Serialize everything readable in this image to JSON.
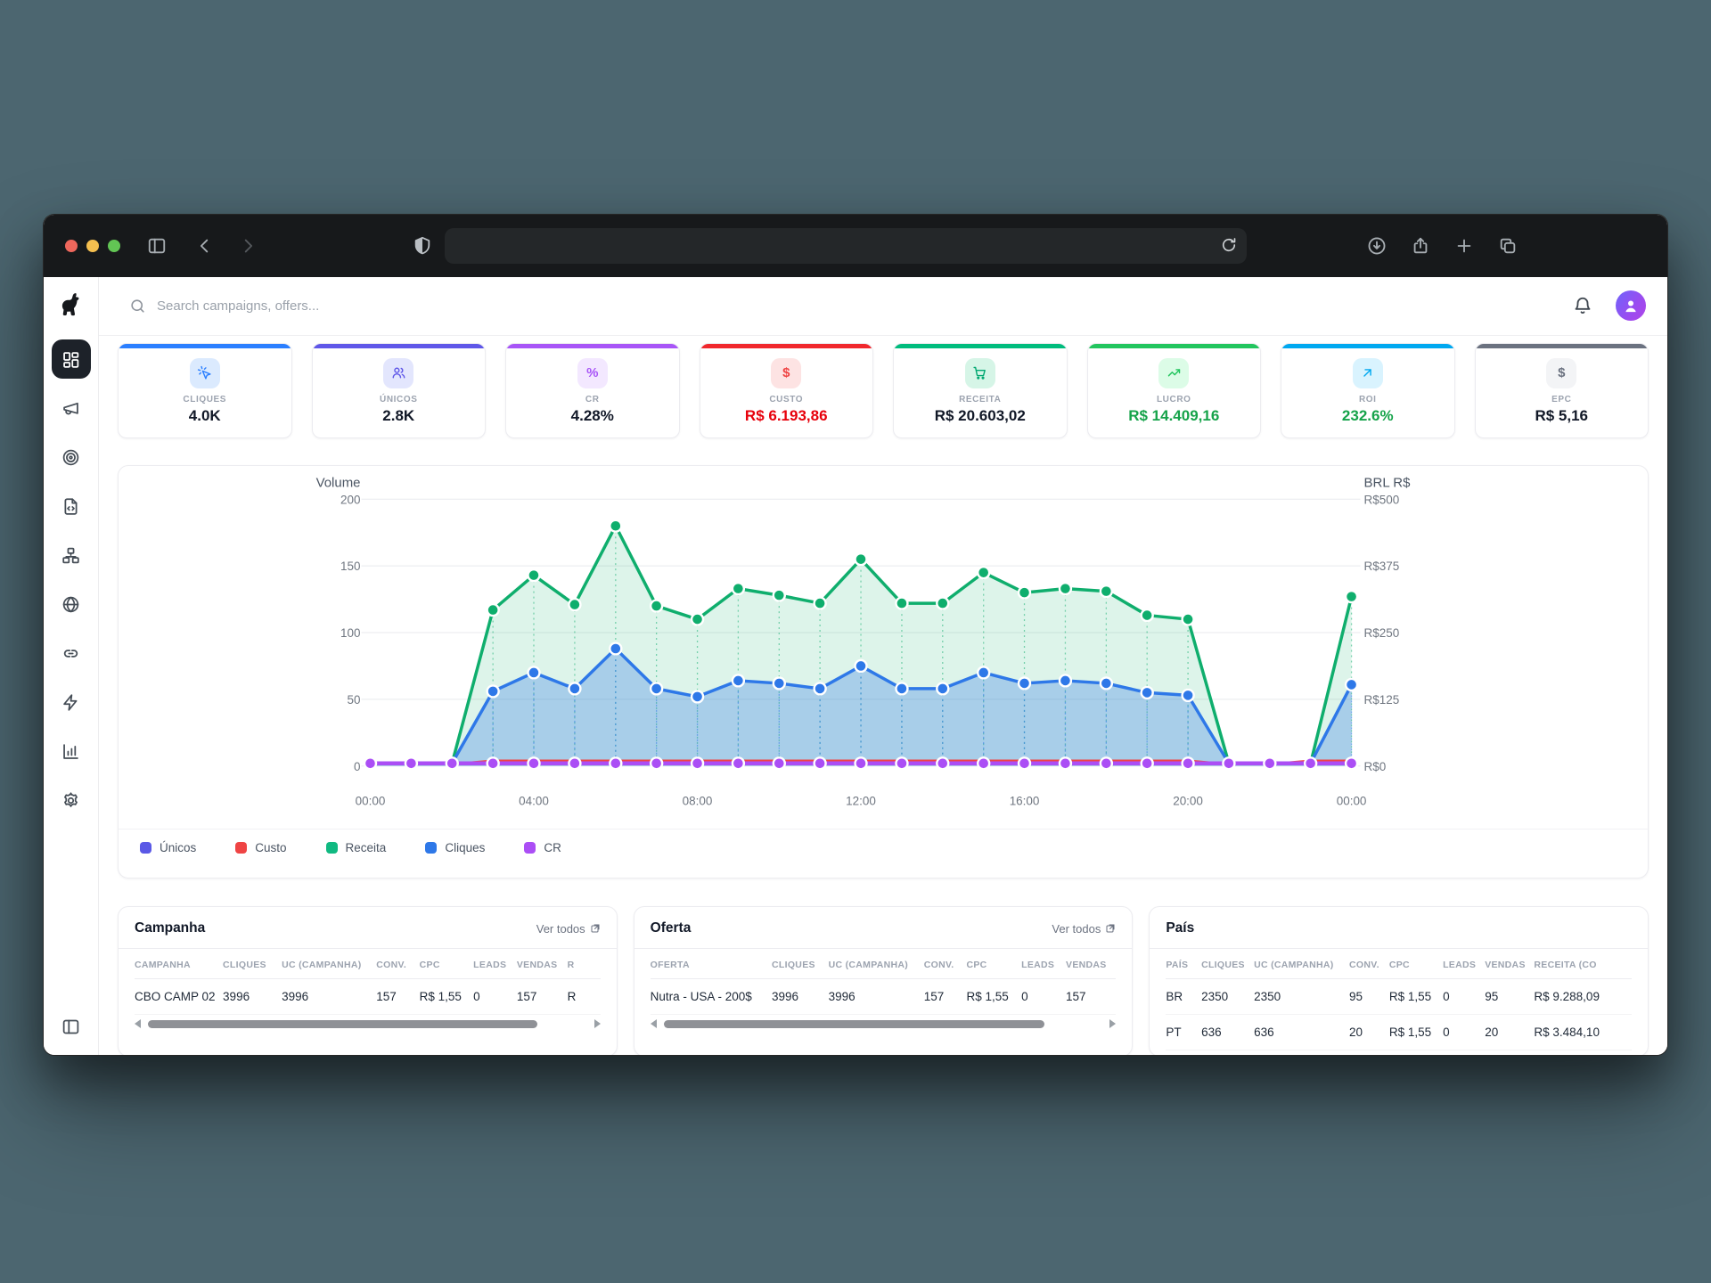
{
  "desktop_background": "#4c6670",
  "browser": {
    "theme": "dark",
    "traffic_lights": [
      "#ee675c",
      "#f5bf4f",
      "#62c554"
    ],
    "url_value": "",
    "toolbar_icons": [
      "sidebar-toggle",
      "chevron-left",
      "chevron-right",
      "shield",
      "reload",
      "download",
      "share",
      "plus",
      "tab-overview"
    ]
  },
  "topbar": {
    "search_placeholder": "Search campaigns, offers...",
    "icons": [
      "search",
      "bell",
      "avatar"
    ]
  },
  "sidebar": {
    "logo": "dog-logo",
    "items": [
      {
        "id": "dashboard",
        "icon": "layout-grid",
        "active": true
      },
      {
        "id": "campaigns",
        "icon": "megaphone",
        "active": false
      },
      {
        "id": "targets",
        "icon": "target",
        "active": false
      },
      {
        "id": "landers",
        "icon": "file-code",
        "active": false
      },
      {
        "id": "flows",
        "icon": "sitemap",
        "active": false
      },
      {
        "id": "domains",
        "icon": "globe",
        "active": false
      },
      {
        "id": "links",
        "icon": "link",
        "active": false
      },
      {
        "id": "automation",
        "icon": "zap",
        "active": false
      },
      {
        "id": "reports",
        "icon": "bar-chart",
        "active": false
      },
      {
        "id": "settings",
        "icon": "gear",
        "active": false
      }
    ],
    "bottom_icon": "panel-left"
  },
  "stats": [
    {
      "label": "CLIQUES",
      "value": "4.0K",
      "accent": "#2b7fff",
      "icon": "cursor-click",
      "icon_bg": "#dbeafe",
      "icon_color": "#2b7fff",
      "value_color": "#111827"
    },
    {
      "label": "ÚNICOS",
      "value": "2.8K",
      "accent": "#5f57e8",
      "icon": "users",
      "icon_bg": "#e3e6fd",
      "icon_color": "#5f57e8",
      "value_color": "#111827"
    },
    {
      "label": "CR",
      "value": "4.28%",
      "accent": "#a855f7",
      "icon": "percent",
      "icon_bg": "#f3e8ff",
      "icon_color": "#a855f7",
      "value_color": "#111827"
    },
    {
      "label": "CUSTO",
      "value": "R$ 6.193,86",
      "accent": "#f0282d",
      "icon": "dollar",
      "icon_bg": "#fde3e3",
      "icon_color": "#ef4444",
      "value_color": "#e7000b"
    },
    {
      "label": "RECEITA",
      "value": "R$ 20.603,02",
      "accent": "#00bc7d",
      "icon": "cart",
      "icon_bg": "#d6f5e7",
      "icon_color": "#00a871",
      "value_color": "#111827"
    },
    {
      "label": "LUCRO",
      "value": "R$ 14.409,16",
      "accent": "#22c55e",
      "icon": "trending-up",
      "icon_bg": "#dcfce7",
      "icon_color": "#22c55e",
      "value_color": "#16a34a"
    },
    {
      "label": "ROI",
      "value": "232.6%",
      "accent": "#00a8f0",
      "icon": "arrow-up-right",
      "icon_bg": "#d9f3fe",
      "icon_color": "#00a8f0",
      "value_color": "#16a34a"
    },
    {
      "label": "EPC",
      "value": "R$ 5,16",
      "accent": "#6b7280",
      "icon": "dollar",
      "icon_bg": "#f3f4f6",
      "icon_color": "#6b7280",
      "value_color": "#111827"
    }
  ],
  "chart_data": {
    "type": "area",
    "title_left": "Volume",
    "title_right": "BRL R$",
    "points": 25,
    "x_ticks": [
      0,
      4,
      8,
      12,
      16,
      20,
      24
    ],
    "x_tick_labels": [
      "00:00",
      "04:00",
      "08:00",
      "12:00",
      "16:00",
      "20:00",
      "00:00"
    ],
    "y_left_max": 200,
    "y_left_ticks": [
      0,
      50,
      100,
      150,
      200
    ],
    "y_left_tick_labels": [
      "0",
      "50",
      "100",
      "150",
      "200"
    ],
    "y_right_tick_labels": [
      "R$0",
      "R$125",
      "R$250",
      "R$375",
      "R$500"
    ],
    "grid": true,
    "legend_position": "bottom",
    "series": [
      {
        "name": "Receita",
        "color": "#0fae6d",
        "fill": "rgba(16,174,109,0.14)",
        "width": 3.5,
        "dots": true,
        "dot_min": 10,
        "droplines": true,
        "values": [
          2,
          2,
          2,
          117,
          143,
          121,
          180,
          120,
          110,
          133,
          128,
          122,
          155,
          122,
          122,
          145,
          130,
          133,
          131,
          113,
          110,
          2,
          2,
          2,
          127
        ]
      },
      {
        "name": "Cliques",
        "color": "#2e78e8",
        "fill": "rgba(46,120,232,0.30)",
        "width": 3.5,
        "dots": true,
        "dot_min": 10,
        "droplines": true,
        "values": [
          2,
          2,
          2,
          56,
          70,
          58,
          88,
          58,
          52,
          64,
          62,
          58,
          75,
          58,
          58,
          70,
          62,
          64,
          62,
          55,
          53,
          2,
          2,
          2,
          61
        ]
      },
      {
        "name": "Custo",
        "color": "#ef4444",
        "fill": null,
        "width": 2.5,
        "dots": false,
        "dot_min": null,
        "droplines": false,
        "values": [
          1.5,
          1.5,
          1.5,
          4,
          4,
          4,
          4,
          4,
          4,
          4,
          4,
          4,
          4,
          4,
          4,
          4,
          4,
          4,
          4,
          4,
          4,
          1.5,
          1.5,
          4,
          4
        ]
      },
      {
        "name": "Únicos",
        "color": "#5a58e6",
        "fill": null,
        "width": 2.5,
        "dots": false,
        "dot_min": null,
        "droplines": false,
        "values": [
          2,
          2,
          2,
          2,
          2,
          2,
          2,
          2,
          2,
          2,
          2,
          2,
          2,
          2,
          2,
          2,
          2,
          2,
          2,
          2,
          2,
          2,
          2,
          2,
          2
        ]
      },
      {
        "name": "CR",
        "color": "#ab4ef5",
        "fill": null,
        "width": 4.5,
        "dots": true,
        "dot_min": null,
        "droplines": false,
        "values": [
          2,
          2,
          2,
          2,
          2,
          2,
          2,
          2,
          2,
          2,
          2,
          2,
          2,
          2,
          2,
          2,
          2,
          2,
          2,
          2,
          2,
          2,
          2,
          2,
          2
        ]
      }
    ],
    "legend": [
      {
        "label": "Únicos",
        "color": "#5a58e6"
      },
      {
        "label": "Custo",
        "color": "#ef4444"
      },
      {
        "label": "Receita",
        "color": "#10b981"
      },
      {
        "label": "Cliques",
        "color": "#2e78e8"
      },
      {
        "label": "CR",
        "color": "#ab4ef5"
      }
    ]
  },
  "tables": [
    {
      "id": "campanha",
      "title": "Campanha",
      "link_label": "Ver todos",
      "has_link": true,
      "has_scrollbar": true,
      "thumb_width": "88%",
      "headers": [
        "CAMPANHA",
        "CLIQUES",
        "UC (CAMPANHA)",
        "CONV.",
        "CPC",
        "LEADS",
        "VENDAS",
        "R"
      ],
      "rows": [
        [
          "CBO CAMP 02",
          "3996",
          "3996",
          "157",
          "R$ 1,55",
          "0",
          "157",
          "R"
        ]
      ]
    },
    {
      "id": "oferta",
      "title": "Oferta",
      "link_label": "Ver todos",
      "has_link": true,
      "has_scrollbar": true,
      "thumb_width": "86%",
      "headers": [
        "OFERTA",
        "CLIQUES",
        "UC (CAMPANHA)",
        "CONV.",
        "CPC",
        "LEADS",
        "VENDAS"
      ],
      "rows": [
        [
          "Nutra - USA - 200$",
          "3996",
          "3996",
          "157",
          "R$ 1,55",
          "0",
          "157"
        ]
      ]
    },
    {
      "id": "pais",
      "title": "País",
      "link_label": "",
      "has_link": false,
      "has_scrollbar": false,
      "thumb_width": "0%",
      "headers": [
        "PAÍS",
        "CLIQUES",
        "UC (CAMPANHA)",
        "CONV.",
        "CPC",
        "LEADS",
        "VENDAS",
        "RECEITA (CO"
      ],
      "rows": [
        [
          "BR",
          "2350",
          "2350",
          "95",
          "R$ 1,55",
          "0",
          "95",
          "R$ 9.288,09"
        ],
        [
          "PT",
          "636",
          "636",
          "20",
          "R$ 1,55",
          "0",
          "20",
          "R$ 3.484,10"
        ]
      ]
    }
  ]
}
